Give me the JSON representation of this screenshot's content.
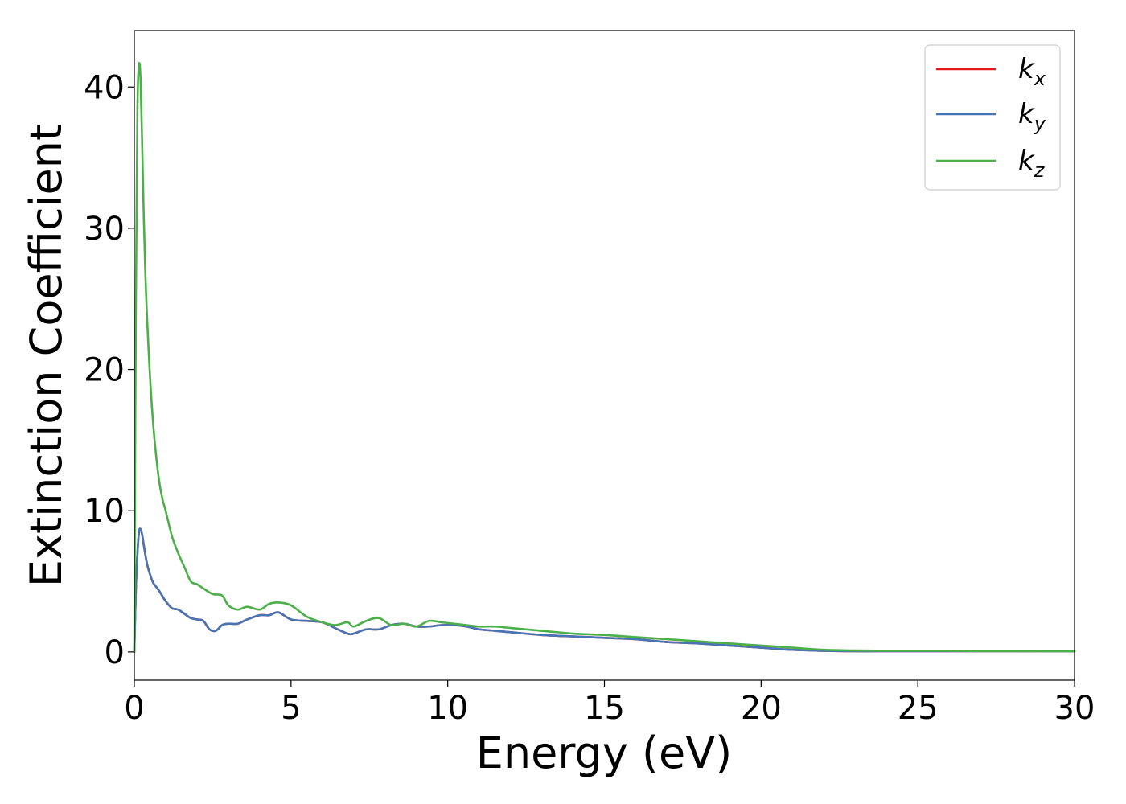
{
  "chart_data": {
    "type": "line",
    "title": "",
    "xlabel": "Energy (eV)",
    "ylabel": "Extinction Coefficient",
    "xlim": [
      0,
      30
    ],
    "ylim": [
      -2,
      44
    ],
    "x_ticks": [
      0,
      5,
      10,
      15,
      20,
      25,
      30
    ],
    "y_ticks": [
      0,
      10,
      20,
      30,
      40
    ],
    "grid": false,
    "legend_position": "top-right",
    "series": [
      {
        "name": "k_x",
        "legend_base": "k",
        "legend_sub": "x",
        "color": "#e41a1c",
        "x": [
          0,
          0.05,
          0.1,
          0.15,
          0.2,
          0.25,
          0.3,
          0.4,
          0.5,
          0.6,
          0.7,
          0.8,
          1.0,
          1.2,
          1.4,
          1.6,
          1.8,
          2.0,
          2.2,
          2.4,
          2.6,
          2.8,
          3.0,
          3.3,
          3.6,
          4.0,
          4.3,
          4.6,
          5.0,
          5.5,
          6.0,
          6.4,
          6.8,
          7.0,
          7.4,
          7.8,
          8.2,
          8.6,
          9.0,
          9.4,
          9.8,
          10.2,
          10.6,
          11.0,
          11.5,
          12.0,
          13.0,
          14.0,
          15.0,
          16.0,
          17.0,
          18.0,
          19.0,
          20.0,
          21.0,
          22.0,
          23.0,
          24.0,
          25.0,
          26.0,
          27.0,
          28.0,
          29.0,
          30.0
        ],
        "y": [
          0.0,
          4.5,
          7.0,
          8.5,
          8.7,
          8.3,
          7.6,
          6.3,
          5.5,
          4.9,
          4.6,
          4.3,
          3.6,
          3.1,
          3.0,
          2.7,
          2.4,
          2.3,
          2.2,
          1.6,
          1.5,
          1.9,
          2.0,
          2.0,
          2.3,
          2.6,
          2.6,
          2.8,
          2.3,
          2.2,
          2.1,
          1.7,
          1.3,
          1.3,
          1.6,
          1.6,
          1.9,
          2.0,
          1.8,
          1.8,
          1.9,
          1.9,
          1.8,
          1.6,
          1.5,
          1.4,
          1.2,
          1.1,
          1.0,
          0.9,
          0.7,
          0.6,
          0.45,
          0.3,
          0.15,
          0.08,
          0.05,
          0.05,
          0.05,
          0.05,
          0.05,
          0.05,
          0.05,
          0.05
        ]
      },
      {
        "name": "k_y",
        "legend_base": "k",
        "legend_sub": "y",
        "color": "#4575b4",
        "x": [
          0,
          0.05,
          0.1,
          0.15,
          0.2,
          0.25,
          0.3,
          0.4,
          0.5,
          0.6,
          0.7,
          0.8,
          1.0,
          1.2,
          1.4,
          1.6,
          1.8,
          2.0,
          2.2,
          2.4,
          2.6,
          2.8,
          3.0,
          3.3,
          3.6,
          4.0,
          4.3,
          4.6,
          5.0,
          5.5,
          6.0,
          6.4,
          6.8,
          7.0,
          7.4,
          7.8,
          8.2,
          8.6,
          9.0,
          9.4,
          9.8,
          10.2,
          10.6,
          11.0,
          11.5,
          12.0,
          13.0,
          14.0,
          15.0,
          16.0,
          17.0,
          18.0,
          19.0,
          20.0,
          21.0,
          22.0,
          23.0,
          24.0,
          25.0,
          26.0,
          27.0,
          28.0,
          29.0,
          30.0
        ],
        "y": [
          0.0,
          4.5,
          7.0,
          8.5,
          8.7,
          8.3,
          7.6,
          6.3,
          5.5,
          4.9,
          4.6,
          4.3,
          3.6,
          3.1,
          3.0,
          2.7,
          2.4,
          2.3,
          2.2,
          1.6,
          1.5,
          1.9,
          2.0,
          2.0,
          2.3,
          2.6,
          2.6,
          2.8,
          2.3,
          2.2,
          2.1,
          1.7,
          1.3,
          1.3,
          1.6,
          1.6,
          1.9,
          2.0,
          1.8,
          1.8,
          1.9,
          1.9,
          1.8,
          1.6,
          1.5,
          1.4,
          1.2,
          1.1,
          1.0,
          0.9,
          0.7,
          0.6,
          0.45,
          0.3,
          0.15,
          0.08,
          0.05,
          0.05,
          0.05,
          0.05,
          0.05,
          0.05,
          0.05,
          0.05
        ]
      },
      {
        "name": "k_z",
        "legend_base": "k",
        "legend_sub": "z",
        "color": "#4daf4a",
        "x": [
          0,
          0.05,
          0.1,
          0.15,
          0.2,
          0.25,
          0.3,
          0.35,
          0.4,
          0.5,
          0.6,
          0.7,
          0.8,
          0.9,
          1.0,
          1.2,
          1.4,
          1.6,
          1.8,
          2.0,
          2.2,
          2.5,
          2.8,
          3.0,
          3.3,
          3.6,
          4.0,
          4.3,
          4.6,
          5.0,
          5.5,
          6.0,
          6.4,
          6.8,
          7.0,
          7.4,
          7.8,
          8.2,
          8.6,
          9.0,
          9.4,
          9.8,
          10.2,
          10.6,
          11.0,
          11.5,
          12.0,
          13.0,
          14.0,
          15.0,
          16.0,
          17.0,
          18.0,
          19.0,
          20.0,
          21.0,
          22.0,
          23.0,
          24.0,
          25.0,
          26.0,
          27.0,
          28.0,
          29.0,
          30.0
        ],
        "y": [
          0.0,
          25.0,
          38.5,
          41.6,
          40.5,
          36.0,
          31.0,
          27.0,
          24.0,
          19.5,
          16.2,
          13.8,
          12.0,
          10.8,
          10.0,
          8.2,
          7.0,
          6.0,
          5.0,
          4.8,
          4.5,
          4.1,
          4.0,
          3.3,
          3.0,
          3.2,
          3.0,
          3.4,
          3.5,
          3.3,
          2.5,
          2.1,
          1.9,
          2.1,
          1.8,
          2.2,
          2.4,
          1.9,
          2.0,
          1.8,
          2.2,
          2.1,
          2.0,
          1.9,
          1.8,
          1.8,
          1.7,
          1.5,
          1.3,
          1.2,
          1.05,
          0.9,
          0.75,
          0.6,
          0.45,
          0.3,
          0.15,
          0.1,
          0.08,
          0.08,
          0.08,
          0.06,
          0.06,
          0.05,
          0.05
        ]
      }
    ]
  }
}
